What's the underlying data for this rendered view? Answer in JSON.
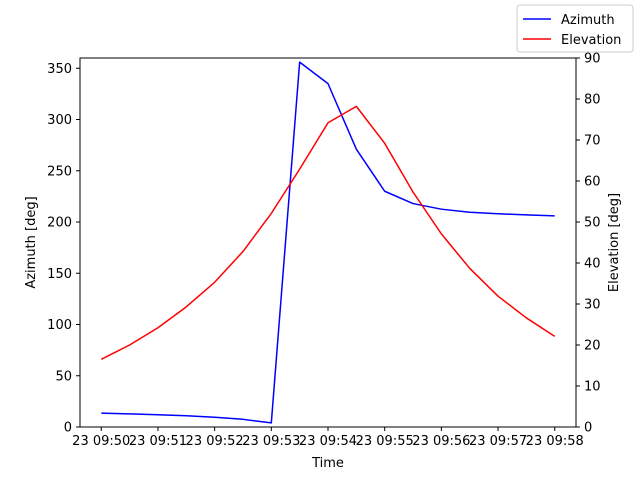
{
  "chart_data": {
    "type": "line",
    "xlabel": "Time",
    "y1label": "Azimuth [deg]",
    "y2label": "Elevation [deg]",
    "x_tick_labels": [
      "23 09:50",
      "23 09:51",
      "23 09:52",
      "23 09:53",
      "23 09:54",
      "23 09:55",
      "23 09:56",
      "23 09:57",
      "23 09:58"
    ],
    "y1_ticks": [
      0,
      50,
      100,
      150,
      200,
      250,
      300,
      350
    ],
    "y2_ticks": [
      0,
      10,
      20,
      30,
      40,
      50,
      60,
      70,
      80,
      90
    ],
    "y1lim": [
      0,
      360
    ],
    "y2lim": [
      0,
      90
    ],
    "xlim_minutes": [
      -0.375,
      8.375
    ],
    "legend_position": "top-right",
    "series": [
      {
        "name": "Azimuth",
        "axis": "left",
        "color": "#0000ff",
        "x_minutes": [
          0,
          0.5,
          1.0,
          1.5,
          2.0,
          2.5,
          3.0,
          3.5,
          4.0,
          4.5,
          5.0,
          5.5,
          6.0,
          6.5,
          7.0,
          7.5,
          8.0
        ],
        "values": [
          13.5,
          12.8,
          12.0,
          11.0,
          9.5,
          7.5,
          4.0,
          356,
          335,
          271,
          230,
          218,
          212.5,
          209.5,
          208,
          207,
          206
        ]
      },
      {
        "name": "Elevation",
        "axis": "right",
        "color": "#ff0000",
        "x_minutes": [
          0,
          0.5,
          1.0,
          1.5,
          2.0,
          2.5,
          3.0,
          3.5,
          4.0,
          4.5,
          5.0,
          5.5,
          6.0,
          6.5,
          7.0,
          7.5,
          8.0
        ],
        "values": [
          16.5,
          20.0,
          24.2,
          29.3,
          35.3,
          42.8,
          52.1,
          62.9,
          74.2,
          78.2,
          69.2,
          57.3,
          47.1,
          38.7,
          31.9,
          26.6,
          22.1
        ]
      }
    ]
  }
}
